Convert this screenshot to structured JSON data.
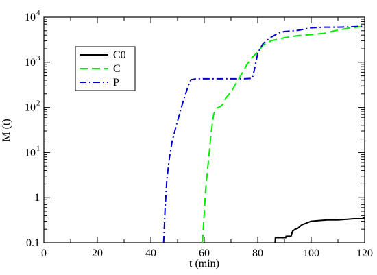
{
  "chart_data": {
    "type": "line",
    "xlabel": "t (min)",
    "ylabel": "M (t)",
    "xlim": [
      0,
      120
    ],
    "ylim": [
      0.1,
      10000
    ],
    "yscale": "log",
    "grid": false,
    "legend_placement": "upper-left",
    "x_ticks": [
      {
        "value": 0,
        "label": "0"
      },
      {
        "value": 20,
        "label": "20"
      },
      {
        "value": 40,
        "label": "40"
      },
      {
        "value": 60,
        "label": "60"
      },
      {
        "value": 80,
        "label": "80"
      },
      {
        "value": 100,
        "label": "100"
      },
      {
        "value": 120,
        "label": "120"
      }
    ],
    "y_ticks": [
      {
        "value": 0.1,
        "label": "0.1"
      },
      {
        "value": 1,
        "label": "1"
      },
      {
        "value": 10,
        "label": "10",
        "sup": "1"
      },
      {
        "value": 100,
        "label": "10",
        "sup": "2"
      },
      {
        "value": 1000,
        "label": "10",
        "sup": "3"
      },
      {
        "value": 10000,
        "label": "10",
        "sup": "4"
      }
    ],
    "series": [
      {
        "name": "C0",
        "color": "#000000",
        "dash": "solid",
        "x": [
          86.5,
          86.6,
          90.5,
          90.6,
          92.5,
          93,
          94,
          95,
          96.5,
          98,
          100,
          103,
          106,
          110,
          113,
          116,
          119,
          120
        ],
        "y": [
          0.1,
          0.13,
          0.13,
          0.14,
          0.14,
          0.18,
          0.2,
          0.21,
          0.25,
          0.27,
          0.3,
          0.31,
          0.32,
          0.32,
          0.33,
          0.34,
          0.34,
          0.36
        ]
      },
      {
        "name": "C",
        "color": "#00ee00",
        "dash": "dashed",
        "x": [
          59.3,
          59.8,
          60.5,
          61.5,
          62.5,
          63.5,
          64.5,
          66,
          67,
          68,
          70,
          72,
          74,
          76,
          78,
          80,
          82,
          85,
          90,
          95,
          100,
          105,
          110,
          115,
          120
        ],
        "y": [
          0.1,
          0.3,
          1.5,
          6,
          25,
          70,
          95,
          105,
          118,
          160,
          220,
          350,
          550,
          900,
          1300,
          1700,
          2400,
          3000,
          3500,
          3900,
          4100,
          4400,
          5200,
          5800,
          6300
        ]
      },
      {
        "name": "P",
        "color": "#0000cc",
        "dash": "dashdot",
        "x": [
          44.8,
          45.3,
          46,
          47,
          48,
          49,
          50,
          52,
          54,
          55,
          57,
          60,
          65,
          70,
          75,
          78,
          79,
          80,
          82,
          85,
          88,
          90,
          95,
          100,
          105,
          110,
          115,
          120
        ],
        "y": [
          0.1,
          0.5,
          2.5,
          8,
          18,
          30,
          50,
          130,
          300,
          410,
          430,
          430,
          430,
          430,
          430,
          440,
          800,
          1600,
          2600,
          3600,
          4500,
          4800,
          5100,
          5800,
          6000,
          6000,
          6100,
          6300
        ]
      }
    ]
  }
}
